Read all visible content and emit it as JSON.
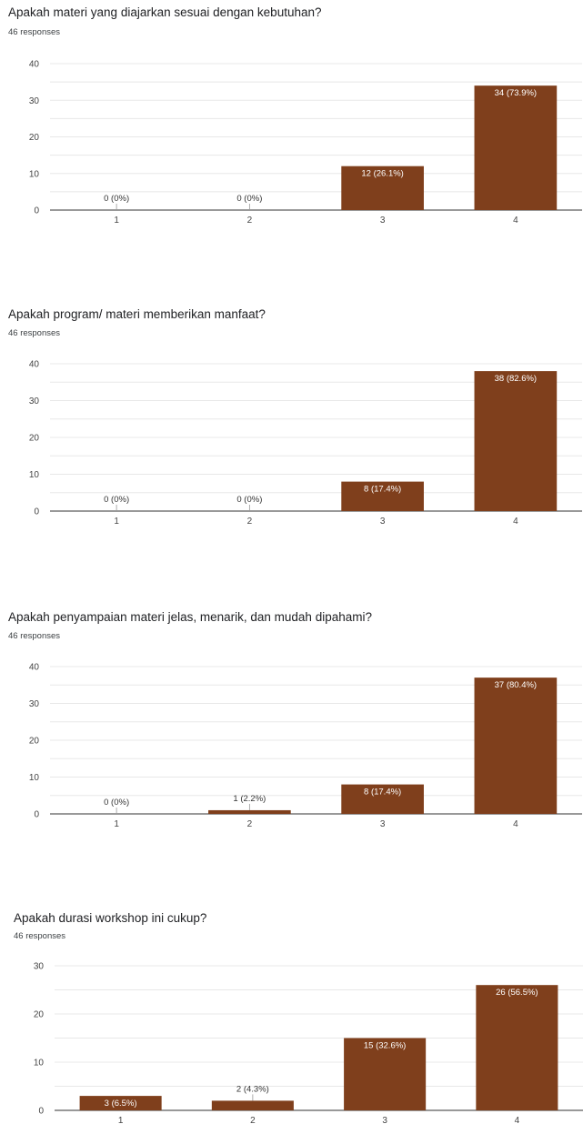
{
  "colors": {
    "bar": "#7f3f1c",
    "grid": "#e8e8e8",
    "axis": "#333333",
    "label_inside": "#ffffff",
    "label_outside": "#333333"
  },
  "chart_data": [
    {
      "type": "bar",
      "title": "Apakah materi yang diajarkan sesuai dengan kebutuhan?",
      "subtitle": "46 responses",
      "categories": [
        "1",
        "2",
        "3",
        "4"
      ],
      "values": [
        0,
        0,
        12,
        34
      ],
      "data_labels": [
        "0 (0%)",
        "0 (0%)",
        "12 (26.1%)",
        "34 (73.9%)"
      ],
      "yticks": [
        "0",
        "10",
        "20",
        "30",
        "40"
      ],
      "ylim": [
        0,
        40
      ],
      "grid": true
    },
    {
      "type": "bar",
      "title": "Apakah program/ materi memberikan manfaat?",
      "subtitle": "46 responses",
      "categories": [
        "1",
        "2",
        "3",
        "4"
      ],
      "values": [
        0,
        0,
        8,
        38
      ],
      "data_labels": [
        "0 (0%)",
        "0 (0%)",
        "8 (17.4%)",
        "38 (82.6%)"
      ],
      "yticks": [
        "0",
        "10",
        "20",
        "30",
        "40"
      ],
      "ylim": [
        0,
        40
      ],
      "grid": true
    },
    {
      "type": "bar",
      "title": "Apakah penyampaian materi jelas, menarik, dan mudah dipahami?",
      "subtitle": "46 responses",
      "categories": [
        "1",
        "2",
        "3",
        "4"
      ],
      "values": [
        0,
        1,
        8,
        37
      ],
      "data_labels": [
        "0 (0%)",
        "1 (2.2%)",
        "8 (17.4%)",
        "37 (80.4%)"
      ],
      "yticks": [
        "0",
        "10",
        "20",
        "30",
        "40"
      ],
      "ylim": [
        0,
        40
      ],
      "grid": true
    },
    {
      "type": "bar",
      "title": "Apakah durasi workshop ini cukup?",
      "subtitle": "46 responses",
      "categories": [
        "1",
        "2",
        "3",
        "4"
      ],
      "values": [
        3,
        2,
        15,
        26
      ],
      "data_labels": [
        "3 (6.5%)",
        "2 (4.3%)",
        "15 (32.6%)",
        "26 (56.5%)"
      ],
      "yticks": [
        "0",
        "10",
        "20",
        "30"
      ],
      "ylim": [
        0,
        30
      ],
      "grid": true
    }
  ]
}
